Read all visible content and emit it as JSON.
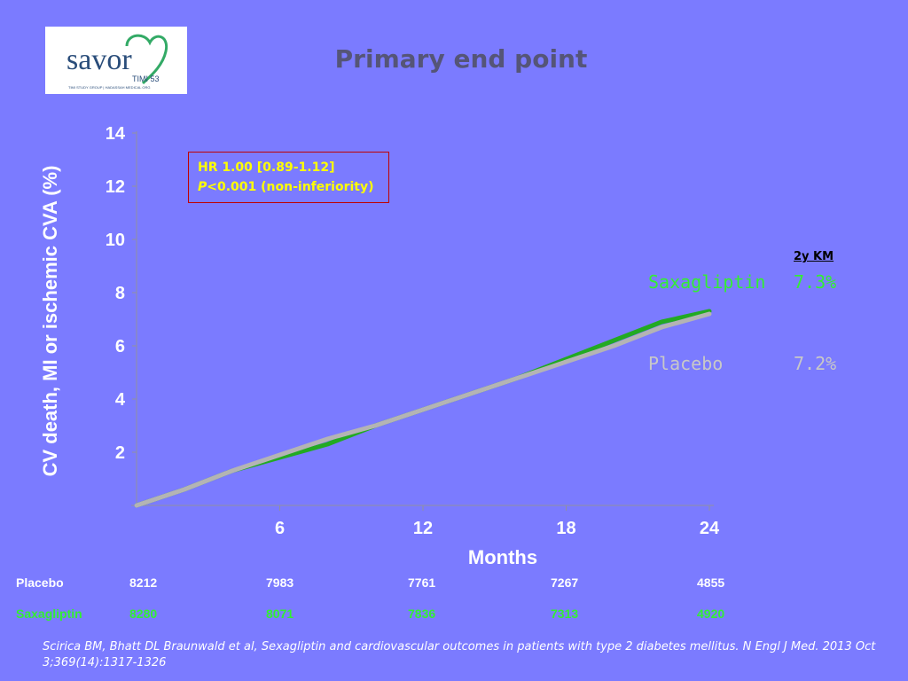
{
  "header": {
    "title": "Primary end point",
    "logo": {
      "text": "savor",
      "sub": "TIMI 53",
      "tiny": "TIMI STUDY GROUP | HADASSAH MEDICAL ORG"
    }
  },
  "annotation": {
    "hr": "HR 1.00  [0.89-1.12]",
    "p_italic": "P",
    "p_rest": "<0.001 (non-inferiority)"
  },
  "legend": {
    "header": "2y KM",
    "saxagliptin": {
      "name": "Saxagliptin",
      "value": "7.3%"
    },
    "placebo": {
      "name": "Placebo",
      "value": "7.2%"
    }
  },
  "risk_table": {
    "rows": [
      {
        "label": "Placebo",
        "values": [
          "8212",
          "7983",
          "7761",
          "7267",
          "4855"
        ]
      },
      {
        "label": "Saxagliptin",
        "values": [
          "8280",
          "8071",
          "7836",
          "7313",
          "4920"
        ]
      }
    ]
  },
  "reference": "Scirica BM, Bhatt DL Braunwald et al, Sexagliptin and cardiovascular outcomes in patients with type 2 diabetes mellitus. N Engl J Med. 2013 Oct 3;369(14):1317-1326",
  "colors": {
    "background": "#7b7bff",
    "saxagliptin": "#22aa22",
    "placebo": "#b4b4b4",
    "saxagliptin_text": "#33ee33",
    "placebo_text": "#c8c8c8"
  },
  "chart_data": {
    "type": "line",
    "title": "Primary end point",
    "xlabel": "Months",
    "ylabel": "CV death, MI or ischemic CVA (%)",
    "xlim": [
      0,
      24
    ],
    "ylim": [
      0,
      14
    ],
    "xticks": [
      6,
      12,
      18,
      24
    ],
    "yticks": [
      2,
      4,
      6,
      8,
      10,
      12,
      14
    ],
    "grid": false,
    "series": [
      {
        "name": "Saxagliptin",
        "color": "#22aa22",
        "x": [
          0,
          2,
          4,
          6,
          8,
          10,
          12,
          14,
          16,
          18,
          20,
          22,
          24
        ],
        "y": [
          0,
          0.6,
          1.3,
          1.8,
          2.3,
          3.0,
          3.6,
          4.2,
          4.8,
          5.5,
          6.2,
          6.9,
          7.3
        ]
      },
      {
        "name": "Placebo",
        "color": "#b4b4b4",
        "x": [
          0,
          2,
          4,
          6,
          8,
          10,
          12,
          14,
          16,
          18,
          20,
          22,
          24
        ],
        "y": [
          0,
          0.6,
          1.3,
          1.9,
          2.5,
          3.0,
          3.6,
          4.2,
          4.8,
          5.4,
          6.0,
          6.7,
          7.2
        ]
      }
    ]
  }
}
